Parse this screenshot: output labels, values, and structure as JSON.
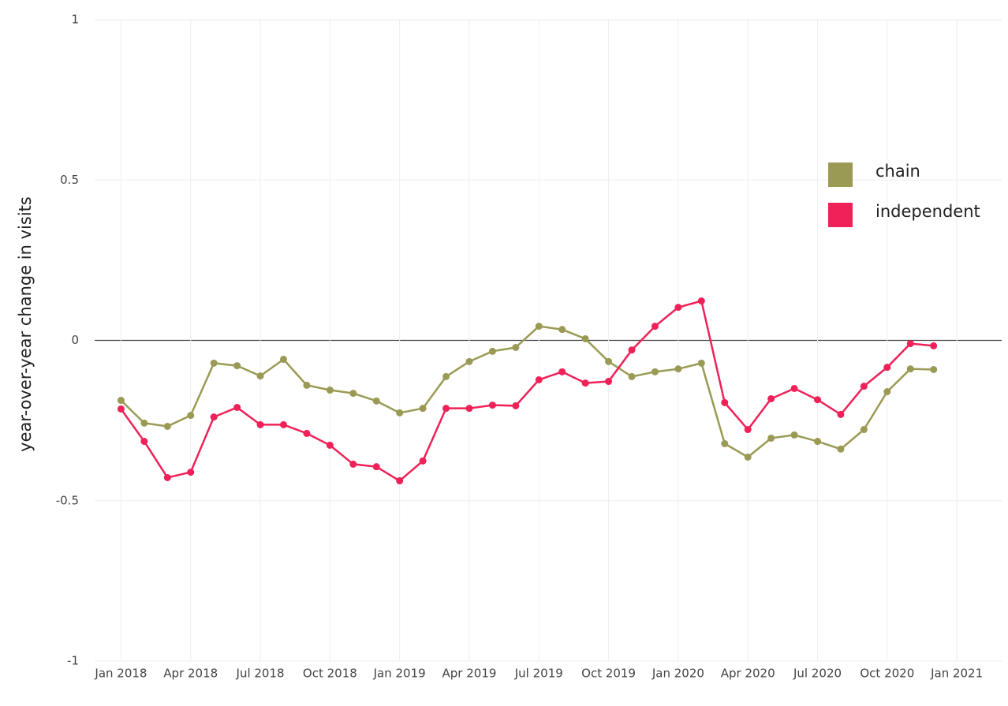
{
  "chart_data": {
    "type": "line",
    "y_label": "year-over-year change in visits",
    "x": [
      "2018-01",
      "2018-02",
      "2018-03",
      "2018-04",
      "2018-05",
      "2018-06",
      "2018-07",
      "2018-08",
      "2018-09",
      "2018-10",
      "2018-11",
      "2018-12",
      "2019-01",
      "2019-02",
      "2019-03",
      "2019-04",
      "2019-05",
      "2019-06",
      "2019-07",
      "2019-08",
      "2019-09",
      "2019-10",
      "2019-11",
      "2019-12",
      "2020-01",
      "2020-02",
      "2020-03",
      "2020-04",
      "2020-05",
      "2020-06",
      "2020-07",
      "2020-08",
      "2020-09",
      "2020-10",
      "2020-11",
      "2020-12"
    ],
    "series": [
      {
        "name": "chain",
        "color": "#9a9a55",
        "values": [
          -0.187,
          -0.258,
          -0.268,
          -0.234,
          -0.071,
          -0.079,
          -0.111,
          -0.059,
          -0.14,
          -0.155,
          -0.165,
          -0.189,
          -0.226,
          -0.212,
          -0.113,
          -0.066,
          -0.034,
          -0.022,
          0.044,
          0.034,
          0.005,
          -0.066,
          -0.113,
          -0.098,
          -0.089,
          -0.071,
          -0.322,
          -0.364,
          -0.305,
          -0.295,
          -0.315,
          -0.339,
          -0.278,
          -0.16,
          -0.089,
          -0.091
        ]
      },
      {
        "name": "independent",
        "color": "#ef2158",
        "values": [
          -0.214,
          -0.315,
          -0.428,
          -0.411,
          -0.239,
          -0.209,
          -0.263,
          -0.263,
          -0.29,
          -0.327,
          -0.386,
          -0.394,
          -0.438,
          -0.376,
          -0.212,
          -0.212,
          -0.202,
          -0.204,
          -0.123,
          -0.098,
          -0.133,
          -0.128,
          -0.03,
          0.044,
          0.103,
          0.123,
          -0.194,
          -0.278,
          -0.182,
          -0.15,
          -0.185,
          -0.231,
          -0.143,
          -0.084,
          -0.01,
          -0.017
        ]
      }
    ],
    "xlim": [
      "2017-12",
      "2021-03"
    ],
    "xticks": [
      {
        "value": "2018-01",
        "label": "Jan 2018"
      },
      {
        "value": "2018-04",
        "label": "Apr 2018"
      },
      {
        "value": "2018-07",
        "label": "Jul 2018"
      },
      {
        "value": "2018-10",
        "label": "Oct 2018"
      },
      {
        "value": "2019-01",
        "label": "Jan 2019"
      },
      {
        "value": "2019-04",
        "label": "Apr 2019"
      },
      {
        "value": "2019-07",
        "label": "Jul 2019"
      },
      {
        "value": "2019-10",
        "label": "Oct 2019"
      },
      {
        "value": "2020-01",
        "label": "Jan 2020"
      },
      {
        "value": "2020-04",
        "label": "Apr 2020"
      },
      {
        "value": "2020-07",
        "label": "Jul 2020"
      },
      {
        "value": "2020-10",
        "label": "Oct 2020"
      },
      {
        "value": "2021-01",
        "label": "Jan 2021"
      }
    ],
    "ylim": [
      -1,
      1
    ],
    "yticks": [
      -1,
      -0.5,
      0,
      0.5,
      1
    ],
    "grid": true,
    "legend": "top-right"
  }
}
